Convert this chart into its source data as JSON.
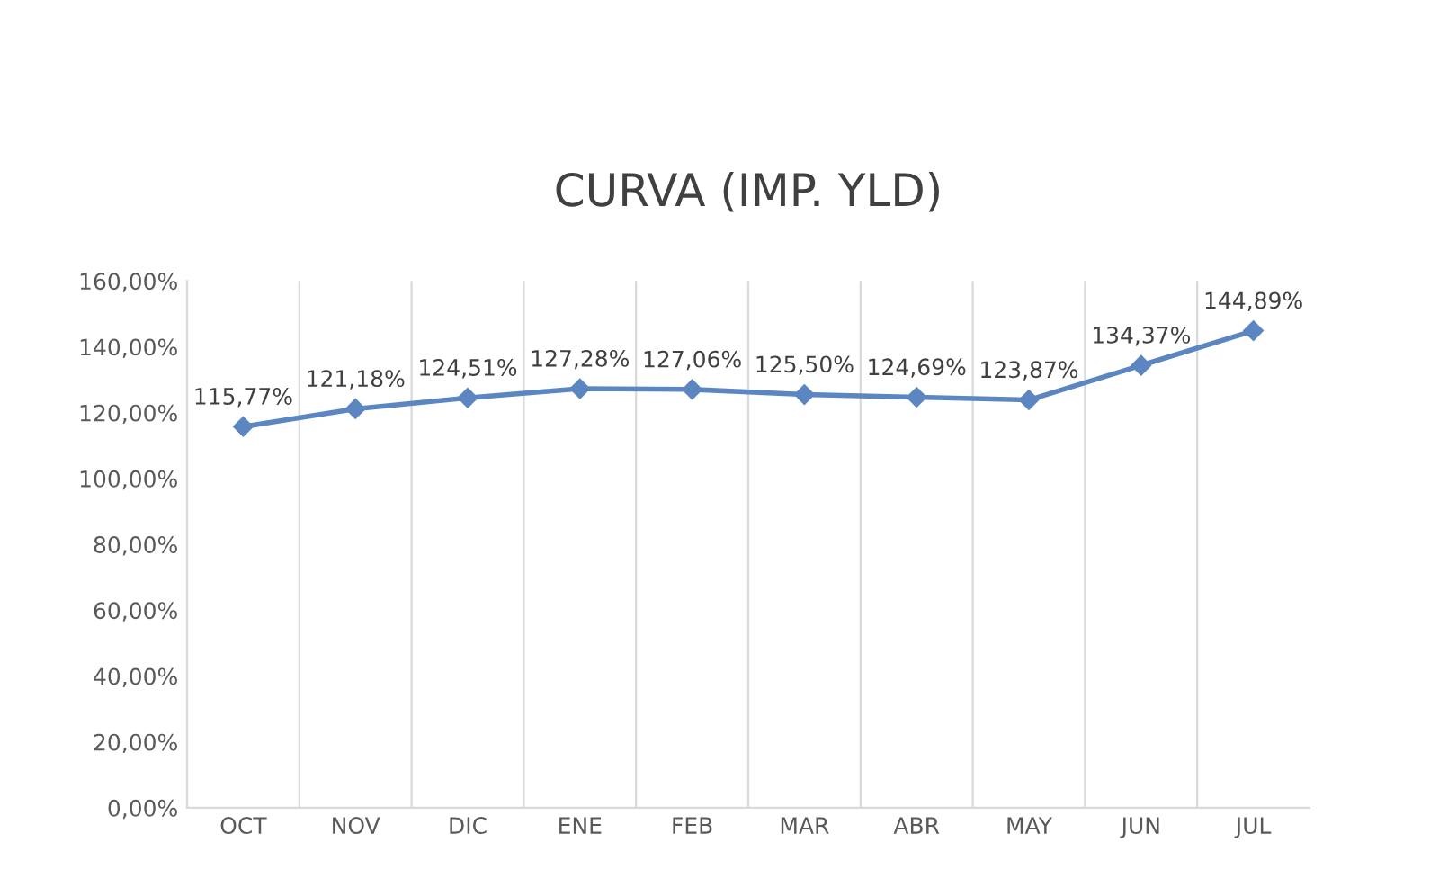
{
  "chart_data": {
    "type": "line",
    "title": "CURVA (IMP. YLD)",
    "categories": [
      "OCT",
      "NOV",
      "DIC",
      "ENE",
      "FEB",
      "MAR",
      "ABR",
      "MAY",
      "JUN",
      "JUL"
    ],
    "series": [
      {
        "color": "#5b86c2",
        "values": [
          115.77,
          121.18,
          124.51,
          127.28,
          127.06,
          125.5,
          124.69,
          123.87,
          134.37,
          144.89
        ],
        "value_labels": [
          "115,77%",
          "121,18%",
          "124,51%",
          "127,28%",
          "127,06%",
          "125,50%",
          "124,69%",
          "123,87%",
          "134,37%",
          "144,89%"
        ]
      }
    ],
    "ylim": [
      0,
      160
    ],
    "yticks": [
      {
        "value": 0,
        "label": "0,00%"
      },
      {
        "value": 20,
        "label": "20,00%"
      },
      {
        "value": 40,
        "label": "40,00%"
      },
      {
        "value": 60,
        "label": "60,00%"
      },
      {
        "value": 80,
        "label": "80,00%"
      },
      {
        "value": 100,
        "label": "100,00%"
      },
      {
        "value": 120,
        "label": "120,00%"
      },
      {
        "value": 140,
        "label": "140,00%"
      },
      {
        "value": 160,
        "label": "160,00%"
      }
    ],
    "grid": "x",
    "marker": "diamond",
    "line_style": "solid",
    "legend": false
  }
}
